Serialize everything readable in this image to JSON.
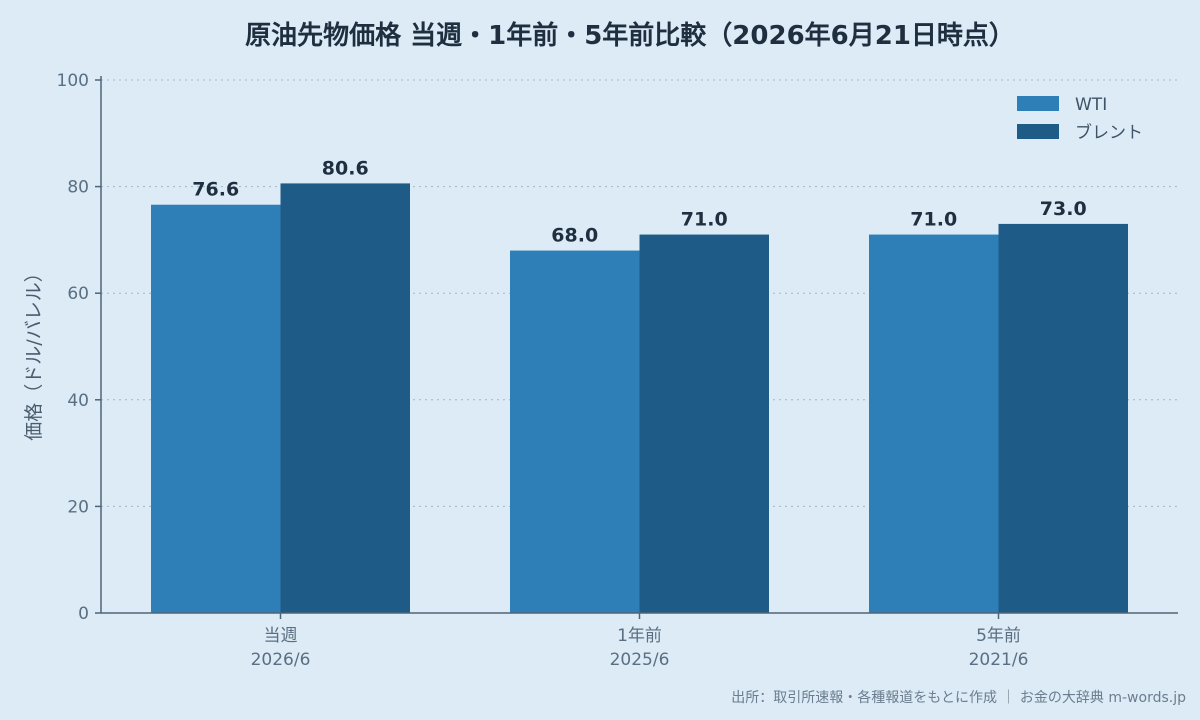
{
  "chart_data": {
    "type": "bar",
    "title": "原油先物価格 当週・1年前・5年前比較（2026年6月21日時点）",
    "ylabel": "価格（ドル/バレル）",
    "xlabel": "",
    "ylim": [
      0,
      100
    ],
    "yticks": [
      0,
      20,
      40,
      60,
      80,
      100
    ],
    "categories": [
      {
        "line1": "当週",
        "line2": "2026/6"
      },
      {
        "line1": "1年前",
        "line2": "2025/6"
      },
      {
        "line1": "5年前",
        "line2": "2021/6"
      }
    ],
    "series": [
      {
        "name": "WTI",
        "color": "#2e7fb8",
        "values": [
          76.6,
          68.0,
          71.0
        ]
      },
      {
        "name": "ブレント",
        "color": "#1e5b87",
        "values": [
          80.6,
          71.0,
          73.0
        ]
      }
    ],
    "legend_position": "top-right",
    "grid": true
  },
  "footer": {
    "source": "出所：取引所速報・各種報道をもとに作成 ｜ お金の大辞典 m-words.jp"
  }
}
